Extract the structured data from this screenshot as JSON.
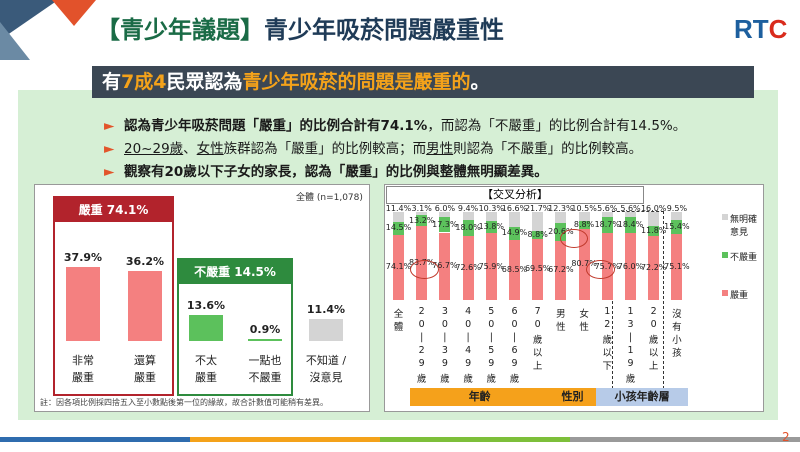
{
  "title_bracket": "【青少年議題】",
  "title_rest": "青少年吸菸問題嚴重性",
  "logo": {
    "text1": "RT",
    "text2": "C"
  },
  "headline": {
    "p1": "有",
    "p2": "7成4",
    "p3": "民眾認為",
    "p4": "青少年吸菸的問題是嚴重的",
    "p5": "。"
  },
  "bullets": [
    {
      "a": "認為青少年吸菸問題「嚴重」的比例合計有74.1%",
      "b": "，而認為「不嚴重」的比例合計有14.5%。"
    },
    {
      "a": "20~29歲",
      "b": "、",
      "c": "女性",
      "d": "族群認為「嚴重」的比例較高；而",
      "e": "男性",
      "f": "則認為「不嚴重」的比例較高。"
    },
    {
      "a": "觀察有20歲以下子女的家長，認為「嚴重」的比例與整體無明顯差異。"
    }
  ],
  "left_chart": {
    "sample": "全體 (n=1,078)",
    "group_serious": "嚴重  74.1%",
    "group_not": "不嚴重  14.5%",
    "note": "註：因各項比例採四捨五入至小數點後第一位的緣故，故合計數值可能稍有差異。",
    "colors": {
      "serious": "#f48080",
      "not": "#5cc15c",
      "unknown": "#d4d4d4",
      "frame": "#b2232c",
      "green": "#2e8b3e"
    }
  },
  "chart_data": [
    {
      "type": "bar",
      "categories": [
        "非常嚴重",
        "還算嚴重",
        "不太嚴重",
        "一點也不嚴重",
        "不知道/沒意見"
      ],
      "category_lines": [
        [
          "非常",
          "嚴重"
        ],
        [
          "還算",
          "嚴重"
        ],
        [
          "不太",
          "嚴重"
        ],
        [
          "一點也",
          "不嚴重"
        ],
        [
          "不知道 /",
          "沒意見"
        ]
      ],
      "values": [
        37.9,
        36.2,
        13.6,
        0.9,
        11.4
      ],
      "labels": [
        "37.9%",
        "36.2%",
        "13.6%",
        "0.9%",
        "11.4%"
      ],
      "ylim": [
        0,
        100
      ]
    },
    {
      "type": "bar",
      "stacked": true,
      "title": "【交叉分析】",
      "categories": [
        "全體",
        "20-29歲",
        "30-39歲",
        "40-49歲",
        "50-59歲",
        "60-69歲",
        "70歲以上",
        "男性",
        "女性",
        "12歲以下",
        "13-19歲",
        "20歲以上",
        "沒有小孩"
      ],
      "category_chars": [
        [
          "全",
          "體"
        ],
        [
          "2",
          "0",
          "|",
          "2",
          "9",
          "歲"
        ],
        [
          "3",
          "0",
          "|",
          "3",
          "9",
          "歲"
        ],
        [
          "4",
          "0",
          "|",
          "4",
          "9",
          "歲"
        ],
        [
          "5",
          "0",
          "|",
          "5",
          "9",
          "歲"
        ],
        [
          "6",
          "0",
          "|",
          "6",
          "9",
          "歲"
        ],
        [
          "7",
          "0",
          "歲",
          "以",
          "上"
        ],
        [
          "男",
          "性"
        ],
        [
          "女",
          "性"
        ],
        [
          "1",
          "2",
          "歲",
          "以",
          "下"
        ],
        [
          "1",
          "3",
          "|",
          "1",
          "9",
          "歲"
        ],
        [
          "2",
          "0",
          "歲",
          "以",
          "上"
        ],
        [
          "沒",
          "有",
          "小",
          "孩"
        ]
      ],
      "series": [
        {
          "name": "嚴重",
          "values": [
            74.1,
            83.7,
            76.7,
            72.6,
            75.9,
            68.5,
            69.5,
            67.2,
            80.7,
            75.7,
            76.0,
            72.2,
            75.1
          ],
          "labels": [
            "74.1%",
            "83.7%",
            "76.7%",
            "72.6%",
            "75.9%",
            "68.5%",
            "69.5%",
            "67.2%",
            "80.7%",
            "75.7%",
            "76.0%",
            "72.2%",
            "75.1%"
          ],
          "color": "#f48080"
        },
        {
          "name": "不嚴重",
          "values": [
            14.5,
            13.2,
            17.3,
            18.0,
            13.8,
            14.9,
            8.8,
            20.6,
            8.8,
            18.7,
            18.4,
            11.8,
            15.4
          ],
          "labels": [
            "14.5%",
            "13.2%",
            "17.3%",
            "18.0%",
            "13.8%",
            "14.9%",
            "8.8%",
            "20.6%",
            "8.8%",
            "18.7%",
            "18.4%",
            "11.8%",
            "15.4%"
          ],
          "color": "#5cc15c"
        },
        {
          "name": "無明確意見",
          "values": [
            11.4,
            3.1,
            6.0,
            9.4,
            10.3,
            16.6,
            21.7,
            12.3,
            10.5,
            5.6,
            5.6,
            16.0,
            9.5
          ],
          "labels": [
            "11.4%",
            "3.1%",
            "6.0%",
            "9.4%",
            "10.3%",
            "16.6%",
            "21.7%",
            "12.3%",
            "10.5%",
            "5.6%",
            "5.6%",
            "16.0%",
            "9.5%"
          ],
          "color": "#d4d4d4"
        }
      ],
      "legend": [
        [
          "無明確",
          "意見"
        ],
        [
          "不嚴重"
        ],
        [
          "嚴重"
        ]
      ],
      "groups": [
        {
          "label": "年齡",
          "from": 1,
          "to": 6,
          "color": "#f5a11b"
        },
        {
          "label": "性別",
          "from": 7,
          "to": 8,
          "color": "#f5a11b"
        },
        {
          "label": "小孩年齡層",
          "from": 9,
          "to": 12,
          "color": "#b7cbe8"
        }
      ],
      "ylim": [
        0,
        100
      ]
    }
  ],
  "page_number": "2",
  "footer_colors": [
    "#2f6cae",
    "#f4a21a",
    "#7dbf3a",
    "#9a9a9a"
  ]
}
